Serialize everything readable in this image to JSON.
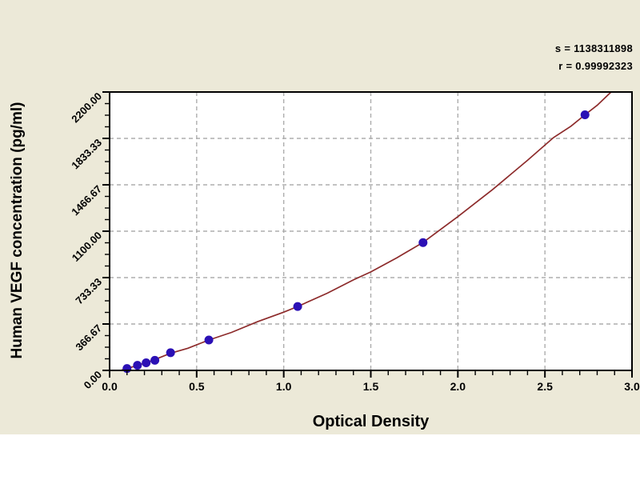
{
  "page": {
    "background_color": "#ECE9D8",
    "footer_color": "#FFFFFF"
  },
  "stats": {
    "s_label": "s = 1138311898",
    "r_label": "r = 0.99992323"
  },
  "chart_data": {
    "type": "scatter",
    "title": "",
    "xlabel": "Optical Density",
    "ylabel": "Human VEGF concentration (pg/ml)",
    "xlim": [
      0.0,
      3.0
    ],
    "ylim": [
      0.0,
      2200.0
    ],
    "x_tick_values": [
      0.0,
      0.5,
      1.0,
      1.5,
      2.0,
      2.5,
      3.0
    ],
    "x_tick_labels": [
      "0.0",
      "0.5",
      "1.0",
      "1.5",
      "2.0",
      "2.5",
      "3.0"
    ],
    "x_minor_step": 0.1,
    "y_tick_values": [
      0.0,
      366.67,
      733.33,
      1100.0,
      1466.67,
      1833.33,
      2200.0
    ],
    "y_tick_labels": [
      "0.00",
      "366.67",
      "733.33",
      "1100.00",
      "1466.67",
      "1833.33",
      "2200.00"
    ],
    "y_minor_step": 91.6675,
    "grid": "dashed",
    "legend_position": "none",
    "fit_stats": {
      "s": "1138311898",
      "r": "0.99992323"
    },
    "series": [
      {
        "name": "standard-points",
        "type": "scatter",
        "points": [
          [
            0.1,
            15
          ],
          [
            0.16,
            40
          ],
          [
            0.21,
            60
          ],
          [
            0.26,
            80
          ],
          [
            0.35,
            140
          ],
          [
            0.57,
            240
          ],
          [
            1.08,
            505
          ],
          [
            1.8,
            1010
          ],
          [
            2.73,
            2020
          ]
        ]
      },
      {
        "name": "fitted-curve",
        "type": "line",
        "points": [
          [
            0.07,
            3
          ],
          [
            0.15,
            35
          ],
          [
            0.25,
            80
          ],
          [
            0.35,
            135
          ],
          [
            0.45,
            175
          ],
          [
            0.57,
            240
          ],
          [
            0.7,
            300
          ],
          [
            0.85,
            385
          ],
          [
            1.0,
            460
          ],
          [
            1.08,
            505
          ],
          [
            1.25,
            610
          ],
          [
            1.4,
            715
          ],
          [
            1.5,
            778
          ],
          [
            1.65,
            890
          ],
          [
            1.8,
            1011
          ],
          [
            2.0,
            1215
          ],
          [
            2.2,
            1430
          ],
          [
            2.4,
            1660
          ],
          [
            2.55,
            1840
          ],
          [
            2.65,
            1930
          ],
          [
            2.73,
            2020
          ],
          [
            2.8,
            2095
          ],
          [
            2.88,
            2200
          ]
        ]
      }
    ],
    "colors": {
      "curve": "#8D2B2B",
      "point_fill": "#2B10B5",
      "point_stroke": "#15087",
      "grid": "#ADADAD",
      "frame": "#000000",
      "plot_background": "#FFFFFF",
      "text": "#000000"
    }
  }
}
